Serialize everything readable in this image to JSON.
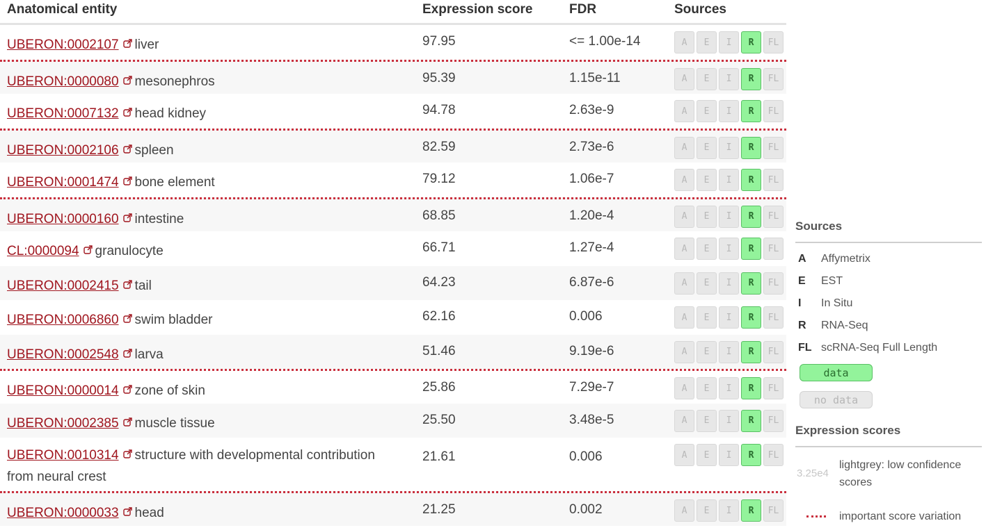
{
  "table": {
    "headers": {
      "entity": "Anatomical entity",
      "score": "Expression score",
      "fdr": "FDR",
      "sources": "Sources"
    },
    "source_letters": [
      "A",
      "E",
      "I",
      "R",
      "FL"
    ],
    "rows": [
      {
        "id": "UBERON:0002107",
        "name": "liver",
        "score": "97.95",
        "fdr": "<= 1.00e-14",
        "sources_on": [
          "R"
        ]
      },
      {
        "id": "UBERON:0000080",
        "name": "mesonephros",
        "score": "95.39",
        "fdr": "1.15e-11",
        "sources_on": [
          "R"
        ]
      },
      {
        "id": "UBERON:0007132",
        "name": "head kidney",
        "score": "94.78",
        "fdr": "2.63e-9",
        "sources_on": [
          "R"
        ]
      },
      {
        "id": "UBERON:0002106",
        "name": "spleen",
        "score": "82.59",
        "fdr": "2.73e-6",
        "sources_on": [
          "R"
        ]
      },
      {
        "id": "UBERON:0001474",
        "name": "bone element",
        "score": "79.12",
        "fdr": "1.06e-7",
        "sources_on": [
          "R"
        ]
      },
      {
        "id": "UBERON:0000160",
        "name": "intestine",
        "score": "68.85",
        "fdr": "1.20e-4",
        "sources_on": [
          "R"
        ]
      },
      {
        "id": "CL:0000094",
        "name": "granulocyte",
        "score": "66.71",
        "fdr": "1.27e-4",
        "sources_on": [
          "R"
        ]
      },
      {
        "id": "UBERON:0002415",
        "name": "tail",
        "score": "64.23",
        "fdr": "6.87e-6",
        "sources_on": [
          "R"
        ]
      },
      {
        "id": "UBERON:0006860",
        "name": "swim bladder",
        "score": "62.16",
        "fdr": "0.006",
        "sources_on": [
          "R"
        ]
      },
      {
        "id": "UBERON:0002548",
        "name": "larva",
        "score": "51.46",
        "fdr": "9.19e-6",
        "sources_on": [
          "R"
        ]
      },
      {
        "id": "UBERON:0000014",
        "name": "zone of skin",
        "score": "25.86",
        "fdr": "7.29e-7",
        "sources_on": [
          "R"
        ]
      },
      {
        "id": "UBERON:0002385",
        "name": "muscle tissue",
        "score": "25.50",
        "fdr": "3.48e-5",
        "sources_on": [
          "R"
        ]
      },
      {
        "id": "UBERON:0010314",
        "name": "structure with developmental contribution from neural crest",
        "score": "21.61",
        "fdr": "0.006",
        "sources_on": [
          "R"
        ]
      },
      {
        "id": "UBERON:0000033",
        "name": "head",
        "score": "21.25",
        "fdr": "0.002",
        "sources_on": [
          "R"
        ]
      }
    ]
  },
  "legend": {
    "sources_title": "Sources",
    "sources": [
      {
        "key": "A",
        "label": "Affymetrix"
      },
      {
        "key": "E",
        "label": "EST"
      },
      {
        "key": "I",
        "label": "In Situ"
      },
      {
        "key": "R",
        "label": "RNA-Seq"
      },
      {
        "key": "FL",
        "label": "scRNA-Seq Full Length"
      }
    ],
    "data_label": "data",
    "no_data_label": "no data",
    "scores_title": "Expression scores",
    "low_conf_sample": "3.25e4",
    "low_conf_text": "lightgrey: low confidence scores",
    "variation_text": "important score variation"
  },
  "colors": {
    "link": "#a0161f",
    "separator": "#c9303e",
    "source_on": "#93f39b",
    "source_off": "#e7e7e7"
  }
}
